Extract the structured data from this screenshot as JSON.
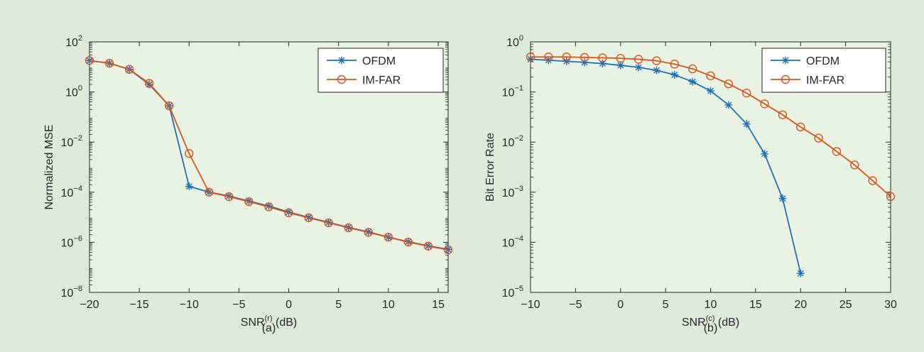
{
  "chart_data": [
    {
      "type": "line",
      "panel": "(a)",
      "caption": "(a)",
      "xlabel_base": "SNR",
      "xlabel_sup": "(r)",
      "xlabel_unit": " (dB)",
      "ylabel": "Normalized MSE",
      "yscale": "log",
      "xlim": [
        -20,
        16
      ],
      "ylim_exp": [
        -8,
        2
      ],
      "x_ticks": [
        -20,
        -15,
        -10,
        -5,
        0,
        5,
        10,
        15
      ],
      "x_tick_labels": [
        "−20",
        "−15",
        "−10",
        "−5",
        "0",
        "5",
        "10",
        "15"
      ],
      "y_tick_exponents": [
        -8,
        -6,
        -4,
        -2,
        0,
        2
      ],
      "y_tick_base": "10",
      "legend_position": "top-right",
      "background": "#e8f3e3",
      "series": [
        {
          "name": "OFDM",
          "color": "#1f6fb5",
          "marker": "star",
          "x": [
            -20,
            -18,
            -16,
            -14,
            -12,
            -10,
            -8,
            -6,
            -4,
            -2,
            0,
            2,
            4,
            6,
            8,
            10,
            12,
            14,
            16
          ],
          "y": [
            18,
            14,
            8,
            2,
            0.28,
            0.00017,
            0.0001,
            7e-05,
            4.4e-05,
            2.8e-05,
            1.6e-05,
            9.8e-06,
            6.2e-06,
            3.9e-06,
            2.6e-06,
            1.6e-06,
            1.05e-06,
            7.2e-07,
            5.2e-07
          ]
        },
        {
          "name": "IM-FAR",
          "color": "#d95319",
          "marker": "circle",
          "x": [
            -20,
            -18,
            -16,
            -14,
            -12,
            -10,
            -8,
            -6,
            -4,
            -2,
            0,
            2,
            4,
            6,
            8,
            10,
            12,
            14,
            16
          ],
          "y": [
            18,
            14,
            8,
            2.2,
            0.28,
            0.0035,
            0.0001,
            6.6e-05,
            4.2e-05,
            2.6e-05,
            1.5e-05,
            9.5e-06,
            6e-06,
            3.8e-06,
            2.5e-06,
            1.6e-06,
            1.02e-06,
            7e-07,
            5e-07
          ]
        }
      ]
    },
    {
      "type": "line",
      "panel": "(b)",
      "caption": "(b)",
      "xlabel_base": "SNR",
      "xlabel_sup": "(c)",
      "xlabel_unit": " (dB)",
      "ylabel": "Bit Error Rate",
      "yscale": "log",
      "xlim": [
        -10,
        30
      ],
      "ylim_exp": [
        -5,
        0
      ],
      "x_ticks": [
        -10,
        -5,
        0,
        5,
        10,
        15,
        20,
        25,
        30
      ],
      "x_tick_labels": [
        "−10",
        "−5",
        "0",
        "5",
        "10",
        "15",
        "20",
        "25",
        "30"
      ],
      "y_tick_exponents": [
        -5,
        -4,
        -3,
        -2,
        -1,
        0
      ],
      "y_tick_base": "10",
      "legend_position": "top-right",
      "background": "#e8f3e3",
      "series": [
        {
          "name": "OFDM",
          "color": "#1f6fb5",
          "marker": "star",
          "x": [
            -10,
            -8,
            -6,
            -4,
            -2,
            0,
            2,
            4,
            6,
            8,
            10,
            12,
            14,
            16,
            18,
            20
          ],
          "y": [
            0.45,
            0.43,
            0.41,
            0.39,
            0.37,
            0.34,
            0.31,
            0.27,
            0.22,
            0.16,
            0.105,
            0.055,
            0.023,
            0.0058,
            0.00075,
            2.4e-05
          ]
        },
        {
          "name": "IM-FAR",
          "color": "#d95319",
          "marker": "circle",
          "x": [
            -10,
            -8,
            -6,
            -4,
            -2,
            0,
            2,
            4,
            6,
            8,
            10,
            12,
            14,
            16,
            18,
            20,
            22,
            24,
            26,
            28,
            30
          ],
          "y": [
            0.5,
            0.5,
            0.5,
            0.49,
            0.48,
            0.47,
            0.45,
            0.42,
            0.36,
            0.29,
            0.21,
            0.145,
            0.095,
            0.058,
            0.035,
            0.02,
            0.012,
            0.0065,
            0.0035,
            0.0017,
            0.00082
          ]
        }
      ]
    }
  ]
}
